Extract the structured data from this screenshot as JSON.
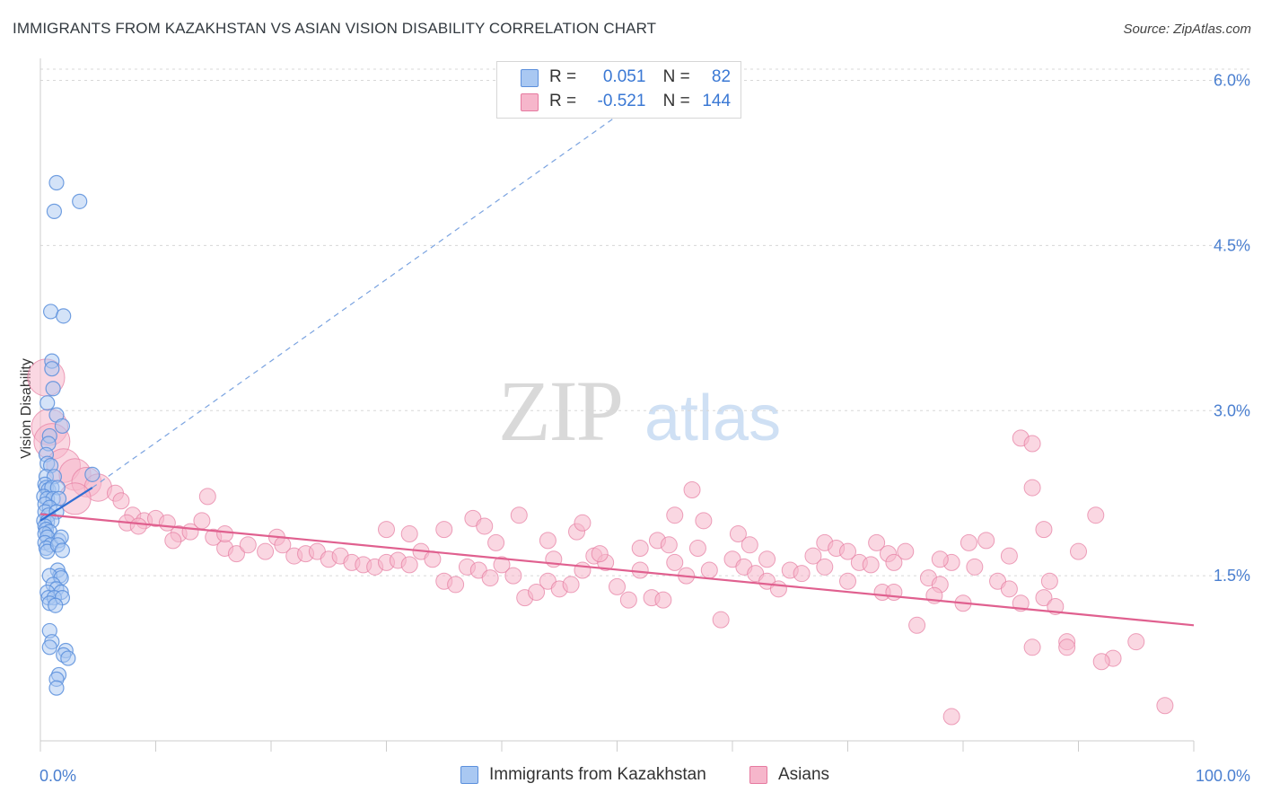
{
  "title": "IMMIGRANTS FROM KAZAKHSTAN VS ASIAN VISION DISABILITY CORRELATION CHART",
  "source": "Source: ZipAtlas.com",
  "watermark": {
    "zip": "ZIP",
    "atlas": "atlas"
  },
  "legend": {
    "series1": {
      "r_label": "R =",
      "r_value": "0.051",
      "n_label": "N =",
      "n_value": "82"
    },
    "series2": {
      "r_label": "R =",
      "r_value": "-0.521",
      "n_label": "N =",
      "n_value": "144"
    }
  },
  "bottom_legend": {
    "series1": "Immigrants from Kazakhstan",
    "series2": "Asians"
  },
  "colors": {
    "blue_fill": "#a9c8f2",
    "blue_stroke": "#5b8fdc",
    "blue_line": "#2f6ed3",
    "pink_fill": "#f6b6cb",
    "pink_stroke": "#e67aa0",
    "pink_line": "#e0608f",
    "grid": "#d8d8d8",
    "tick_text": "#4a7fd0"
  },
  "chart_data": {
    "type": "scatter",
    "title": "IMMIGRANTS FROM KAZAKHSTAN VS ASIAN VISION DISABILITY CORRELATION CHART",
    "xlabel": "",
    "ylabel": "Vision Disability",
    "xlim": [
      0,
      100
    ],
    "ylim": [
      0,
      6.2
    ],
    "x_tick_labels": [
      "0.0%",
      "100.0%"
    ],
    "y_ticks": [
      {
        "value": 1.5,
        "label": "1.5%"
      },
      {
        "value": 3.0,
        "label": "3.0%"
      },
      {
        "value": 4.5,
        "label": "4.5%"
      },
      {
        "value": 6.0,
        "label": "6.0%"
      }
    ],
    "series": [
      {
        "name": "Immigrants from Kazakhstan",
        "R": 0.051,
        "N": 82,
        "trend_solid": [
          [
            0,
            2.0
          ],
          [
            4.5,
            2.3
          ]
        ],
        "trend_dashed": [
          [
            4.5,
            2.3
          ],
          [
            53,
            5.9
          ]
        ],
        "points": [
          [
            1.4,
            5.07
          ],
          [
            1.2,
            4.81
          ],
          [
            3.4,
            4.9
          ],
          [
            0.9,
            3.9
          ],
          [
            2.0,
            3.86
          ],
          [
            1.0,
            3.45
          ],
          [
            1.0,
            3.38
          ],
          [
            1.1,
            3.2
          ],
          [
            0.6,
            3.07
          ],
          [
            1.4,
            2.96
          ],
          [
            1.9,
            2.86
          ],
          [
            0.8,
            2.77
          ],
          [
            0.7,
            2.7
          ],
          [
            0.5,
            2.6
          ],
          [
            0.6,
            2.52
          ],
          [
            0.9,
            2.5
          ],
          [
            0.5,
            2.4
          ],
          [
            1.2,
            2.4
          ],
          [
            4.5,
            2.42
          ],
          [
            0.4,
            2.33
          ],
          [
            0.5,
            2.3
          ],
          [
            0.7,
            2.28
          ],
          [
            1.0,
            2.3
          ],
          [
            1.5,
            2.3
          ],
          [
            0.3,
            2.22
          ],
          [
            0.6,
            2.2
          ],
          [
            1.1,
            2.2
          ],
          [
            1.6,
            2.2
          ],
          [
            0.4,
            2.15
          ],
          [
            0.8,
            2.12
          ],
          [
            0.4,
            2.08
          ],
          [
            0.7,
            2.05
          ],
          [
            1.4,
            2.08
          ],
          [
            0.3,
            2.0
          ],
          [
            0.6,
            1.99
          ],
          [
            1.0,
            2.0
          ],
          [
            0.4,
            1.95
          ],
          [
            0.5,
            1.92
          ],
          [
            0.8,
            1.9
          ],
          [
            0.4,
            1.88
          ],
          [
            0.6,
            1.85
          ],
          [
            1.6,
            1.82
          ],
          [
            0.4,
            1.8
          ],
          [
            0.9,
            1.78
          ],
          [
            1.8,
            1.85
          ],
          [
            0.5,
            1.75
          ],
          [
            0.6,
            1.72
          ],
          [
            1.5,
            1.78
          ],
          [
            1.9,
            1.73
          ],
          [
            1.5,
            1.55
          ],
          [
            1.7,
            1.5
          ],
          [
            0.8,
            1.5
          ],
          [
            1.8,
            1.48
          ],
          [
            1.1,
            1.42
          ],
          [
            1.4,
            1.38
          ],
          [
            0.6,
            1.35
          ],
          [
            1.8,
            1.35
          ],
          [
            0.7,
            1.3
          ],
          [
            1.2,
            1.3
          ],
          [
            1.9,
            1.3
          ],
          [
            0.8,
            1.25
          ],
          [
            1.3,
            1.23
          ],
          [
            0.8,
            1.0
          ],
          [
            1.0,
            0.9
          ],
          [
            0.8,
            0.85
          ],
          [
            2.2,
            0.82
          ],
          [
            2.0,
            0.78
          ],
          [
            2.4,
            0.75
          ],
          [
            1.6,
            0.6
          ],
          [
            1.4,
            0.56
          ],
          [
            1.4,
            0.48
          ]
        ]
      },
      {
        "name": "Asians",
        "R": -0.521,
        "N": 144,
        "trend": [
          [
            0,
            2.06
          ],
          [
            100,
            1.05
          ]
        ],
        "points": [
          [
            0.5,
            3.3
          ],
          [
            0.8,
            2.85
          ],
          [
            1.0,
            2.72
          ],
          [
            2.0,
            2.5
          ],
          [
            3.0,
            2.42
          ],
          [
            4.0,
            2.35
          ],
          [
            5.0,
            2.3
          ],
          [
            6.5,
            2.25
          ],
          [
            7.0,
            2.18
          ],
          [
            8.0,
            2.05
          ],
          [
            9.0,
            2.0
          ],
          [
            10.0,
            2.02
          ],
          [
            7.5,
            1.98
          ],
          [
            8.5,
            1.95
          ],
          [
            11.0,
            1.98
          ],
          [
            12.0,
            1.88
          ],
          [
            11.5,
            1.82
          ],
          [
            13.0,
            1.9
          ],
          [
            14.0,
            2.0
          ],
          [
            15.0,
            1.85
          ],
          [
            16.0,
            1.75
          ],
          [
            17.0,
            1.7
          ],
          [
            18.0,
            1.78
          ],
          [
            19.5,
            1.72
          ],
          [
            20.5,
            1.85
          ],
          [
            21.0,
            1.78
          ],
          [
            22.0,
            1.68
          ],
          [
            23.0,
            1.7
          ],
          [
            24.0,
            1.72
          ],
          [
            25.0,
            1.65
          ],
          [
            26.0,
            1.68
          ],
          [
            27.0,
            1.62
          ],
          [
            28.0,
            1.6
          ],
          [
            29.0,
            1.58
          ],
          [
            30.0,
            1.62
          ],
          [
            31.0,
            1.64
          ],
          [
            32.0,
            1.6
          ],
          [
            33.0,
            1.72
          ],
          [
            34.0,
            1.65
          ],
          [
            35.0,
            1.45
          ],
          [
            36.0,
            1.42
          ],
          [
            37.0,
            1.58
          ],
          [
            38.0,
            1.55
          ],
          [
            39.0,
            1.48
          ],
          [
            40.0,
            1.6
          ],
          [
            41.0,
            1.5
          ],
          [
            42.0,
            1.3
          ],
          [
            43.0,
            1.35
          ],
          [
            44.0,
            1.45
          ],
          [
            45.0,
            1.38
          ],
          [
            46.0,
            1.42
          ],
          [
            47.0,
            1.55
          ],
          [
            48.0,
            1.68
          ],
          [
            49.0,
            1.62
          ],
          [
            50.0,
            1.4
          ],
          [
            51.0,
            1.28
          ],
          [
            52.0,
            1.55
          ],
          [
            53.0,
            1.3
          ],
          [
            54.0,
            1.28
          ],
          [
            55.0,
            1.62
          ],
          [
            56.0,
            1.5
          ],
          [
            57.0,
            1.75
          ],
          [
            58.0,
            1.55
          ],
          [
            59.0,
            1.1
          ],
          [
            60.0,
            1.65
          ],
          [
            61.0,
            1.58
          ],
          [
            62.0,
            1.52
          ],
          [
            63.0,
            1.45
          ],
          [
            64.0,
            1.38
          ],
          [
            65.0,
            1.55
          ],
          [
            66.0,
            1.52
          ],
          [
            67.0,
            1.68
          ],
          [
            68.0,
            1.8
          ],
          [
            69.0,
            1.75
          ],
          [
            70.0,
            1.45
          ],
          [
            71.0,
            1.62
          ],
          [
            72.0,
            1.6
          ],
          [
            73.0,
            1.35
          ],
          [
            74.0,
            1.35
          ],
          [
            75.0,
            1.72
          ],
          [
            76.0,
            1.05
          ],
          [
            77.0,
            1.48
          ],
          [
            78.0,
            1.42
          ],
          [
            79.0,
            1.62
          ],
          [
            80.0,
            1.25
          ],
          [
            81.0,
            1.58
          ],
          [
            82.0,
            1.82
          ],
          [
            83.0,
            1.45
          ],
          [
            84.0,
            1.38
          ],
          [
            85.0,
            1.25
          ],
          [
            86.0,
            0.85
          ],
          [
            87.0,
            1.3
          ],
          [
            88.0,
            1.22
          ],
          [
            89.0,
            0.9
          ],
          [
            90.0,
            1.72
          ],
          [
            93.0,
            0.75
          ],
          [
            95.0,
            0.9
          ],
          [
            85.0,
            2.75
          ],
          [
            86.0,
            2.7
          ],
          [
            56.5,
            2.28
          ],
          [
            55.0,
            2.05
          ],
          [
            57.5,
            2.0
          ],
          [
            72.5,
            1.8
          ],
          [
            73.5,
            1.7
          ],
          [
            78.0,
            1.65
          ],
          [
            80.5,
            1.8
          ],
          [
            84.0,
            1.68
          ],
          [
            87.0,
            1.92
          ],
          [
            91.5,
            2.05
          ],
          [
            86.0,
            2.3
          ],
          [
            30.0,
            1.92
          ],
          [
            32.0,
            1.88
          ],
          [
            35.0,
            1.92
          ],
          [
            37.5,
            2.02
          ],
          [
            38.5,
            1.95
          ],
          [
            39.5,
            1.8
          ],
          [
            41.5,
            2.05
          ],
          [
            44.0,
            1.82
          ],
          [
            46.5,
            1.9
          ],
          [
            47.0,
            1.98
          ],
          [
            52.0,
            1.75
          ],
          [
            53.5,
            1.82
          ],
          [
            54.5,
            1.78
          ],
          [
            44.5,
            1.65
          ],
          [
            48.5,
            1.7
          ],
          [
            60.5,
            1.88
          ],
          [
            61.5,
            1.78
          ],
          [
            63.0,
            1.65
          ],
          [
            68.0,
            1.58
          ],
          [
            70.0,
            1.72
          ],
          [
            74.0,
            1.62
          ],
          [
            77.5,
            1.32
          ],
          [
            79.0,
            0.22
          ],
          [
            87.5,
            1.45
          ],
          [
            89.0,
            0.85
          ],
          [
            92.0,
            0.72
          ],
          [
            97.5,
            0.32
          ],
          [
            16.0,
            1.88
          ],
          [
            14.5,
            2.22
          ],
          [
            3.0,
            2.2
          ]
        ]
      }
    ]
  }
}
